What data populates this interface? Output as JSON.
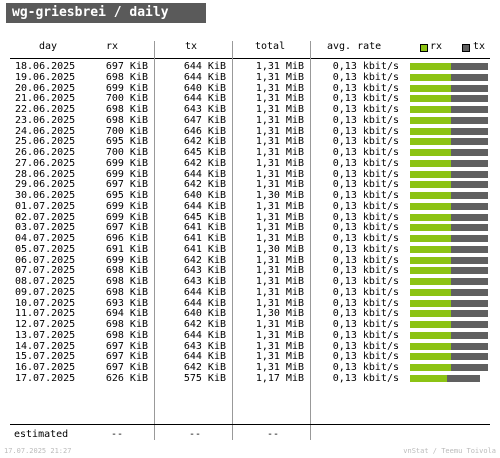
{
  "title": "wg-griesbrei / daily",
  "columns": {
    "day": "day",
    "rx": "rx",
    "tx": "tx",
    "total": "total",
    "rate": "avg. rate"
  },
  "legend": {
    "rx": "rx",
    "tx": "tx",
    "rx_color": "#8cc314",
    "tx_color": "#606060"
  },
  "rows": [
    {
      "day": "18.06.2025",
      "rx": "697 KiB",
      "tx": "644 KiB",
      "total": "1,31 MiB",
      "rate": "0,13 kbit/s",
      "rx_share": 0.52
    },
    {
      "day": "19.06.2025",
      "rx": "698 KiB",
      "tx": "644 KiB",
      "total": "1,31 MiB",
      "rate": "0,13 kbit/s",
      "rx_share": 0.52
    },
    {
      "day": "20.06.2025",
      "rx": "699 KiB",
      "tx": "640 KiB",
      "total": "1,31 MiB",
      "rate": "0,13 kbit/s",
      "rx_share": 0.52
    },
    {
      "day": "21.06.2025",
      "rx": "700 KiB",
      "tx": "644 KiB",
      "total": "1,31 MiB",
      "rate": "0,13 kbit/s",
      "rx_share": 0.52
    },
    {
      "day": "22.06.2025",
      "rx": "698 KiB",
      "tx": "643 KiB",
      "total": "1,31 MiB",
      "rate": "0,13 kbit/s",
      "rx_share": 0.52
    },
    {
      "day": "23.06.2025",
      "rx": "698 KiB",
      "tx": "647 KiB",
      "total": "1,31 MiB",
      "rate": "0,13 kbit/s",
      "rx_share": 0.52
    },
    {
      "day": "24.06.2025",
      "rx": "700 KiB",
      "tx": "646 KiB",
      "total": "1,31 MiB",
      "rate": "0,13 kbit/s",
      "rx_share": 0.52
    },
    {
      "day": "25.06.2025",
      "rx": "695 KiB",
      "tx": "642 KiB",
      "total": "1,31 MiB",
      "rate": "0,13 kbit/s",
      "rx_share": 0.52
    },
    {
      "day": "26.06.2025",
      "rx": "700 KiB",
      "tx": "645 KiB",
      "total": "1,31 MiB",
      "rate": "0,13 kbit/s",
      "rx_share": 0.52
    },
    {
      "day": "27.06.2025",
      "rx": "699 KiB",
      "tx": "642 KiB",
      "total": "1,31 MiB",
      "rate": "0,13 kbit/s",
      "rx_share": 0.52
    },
    {
      "day": "28.06.2025",
      "rx": "699 KiB",
      "tx": "644 KiB",
      "total": "1,31 MiB",
      "rate": "0,13 kbit/s",
      "rx_share": 0.52
    },
    {
      "day": "29.06.2025",
      "rx": "697 KiB",
      "tx": "642 KiB",
      "total": "1,31 MiB",
      "rate": "0,13 kbit/s",
      "rx_share": 0.52
    },
    {
      "day": "30.06.2025",
      "rx": "695 KiB",
      "tx": "640 KiB",
      "total": "1,30 MiB",
      "rate": "0,13 kbit/s",
      "rx_share": 0.52
    },
    {
      "day": "01.07.2025",
      "rx": "699 KiB",
      "tx": "644 KiB",
      "total": "1,31 MiB",
      "rate": "0,13 kbit/s",
      "rx_share": 0.52
    },
    {
      "day": "02.07.2025",
      "rx": "699 KiB",
      "tx": "645 KiB",
      "total": "1,31 MiB",
      "rate": "0,13 kbit/s",
      "rx_share": 0.52
    },
    {
      "day": "03.07.2025",
      "rx": "697 KiB",
      "tx": "641 KiB",
      "total": "1,31 MiB",
      "rate": "0,13 kbit/s",
      "rx_share": 0.52
    },
    {
      "day": "04.07.2025",
      "rx": "696 KiB",
      "tx": "641 KiB",
      "total": "1,31 MiB",
      "rate": "0,13 kbit/s",
      "rx_share": 0.52
    },
    {
      "day": "05.07.2025",
      "rx": "691 KiB",
      "tx": "641 KiB",
      "total": "1,30 MiB",
      "rate": "0,13 kbit/s",
      "rx_share": 0.52
    },
    {
      "day": "06.07.2025",
      "rx": "699 KiB",
      "tx": "642 KiB",
      "total": "1,31 MiB",
      "rate": "0,13 kbit/s",
      "rx_share": 0.52
    },
    {
      "day": "07.07.2025",
      "rx": "698 KiB",
      "tx": "643 KiB",
      "total": "1,31 MiB",
      "rate": "0,13 kbit/s",
      "rx_share": 0.52
    },
    {
      "day": "08.07.2025",
      "rx": "698 KiB",
      "tx": "643 KiB",
      "total": "1,31 MiB",
      "rate": "0,13 kbit/s",
      "rx_share": 0.52
    },
    {
      "day": "09.07.2025",
      "rx": "698 KiB",
      "tx": "644 KiB",
      "total": "1,31 MiB",
      "rate": "0,13 kbit/s",
      "rx_share": 0.52
    },
    {
      "day": "10.07.2025",
      "rx": "693 KiB",
      "tx": "644 KiB",
      "total": "1,31 MiB",
      "rate": "0,13 kbit/s",
      "rx_share": 0.52
    },
    {
      "day": "11.07.2025",
      "rx": "694 KiB",
      "tx": "640 KiB",
      "total": "1,30 MiB",
      "rate": "0,13 kbit/s",
      "rx_share": 0.52
    },
    {
      "day": "12.07.2025",
      "rx": "698 KiB",
      "tx": "642 KiB",
      "total": "1,31 MiB",
      "rate": "0,13 kbit/s",
      "rx_share": 0.52
    },
    {
      "day": "13.07.2025",
      "rx": "698 KiB",
      "tx": "644 KiB",
      "total": "1,31 MiB",
      "rate": "0,13 kbit/s",
      "rx_share": 0.52
    },
    {
      "day": "14.07.2025",
      "rx": "697 KiB",
      "tx": "643 KiB",
      "total": "1,31 MiB",
      "rate": "0,13 kbit/s",
      "rx_share": 0.52
    },
    {
      "day": "15.07.2025",
      "rx": "697 KiB",
      "tx": "644 KiB",
      "total": "1,31 MiB",
      "rate": "0,13 kbit/s",
      "rx_share": 0.52
    },
    {
      "day": "16.07.2025",
      "rx": "697 KiB",
      "tx": "642 KiB",
      "total": "1,31 MiB",
      "rate": "0,13 kbit/s",
      "rx_share": 0.52
    },
    {
      "day": "17.07.2025",
      "rx": "626 KiB",
      "tx": "575 KiB",
      "total": "1,17 MiB",
      "rate": "0,13 kbit/s",
      "rx_share": 0.52,
      "bar_fraction": 0.9
    }
  ],
  "estimated": {
    "label": "estimated",
    "rx": "--",
    "tx": "--",
    "total": "--"
  },
  "footer": {
    "timestamp": "17.07.2025 21:27",
    "credit": "vnStat / Teemu Toivola"
  }
}
